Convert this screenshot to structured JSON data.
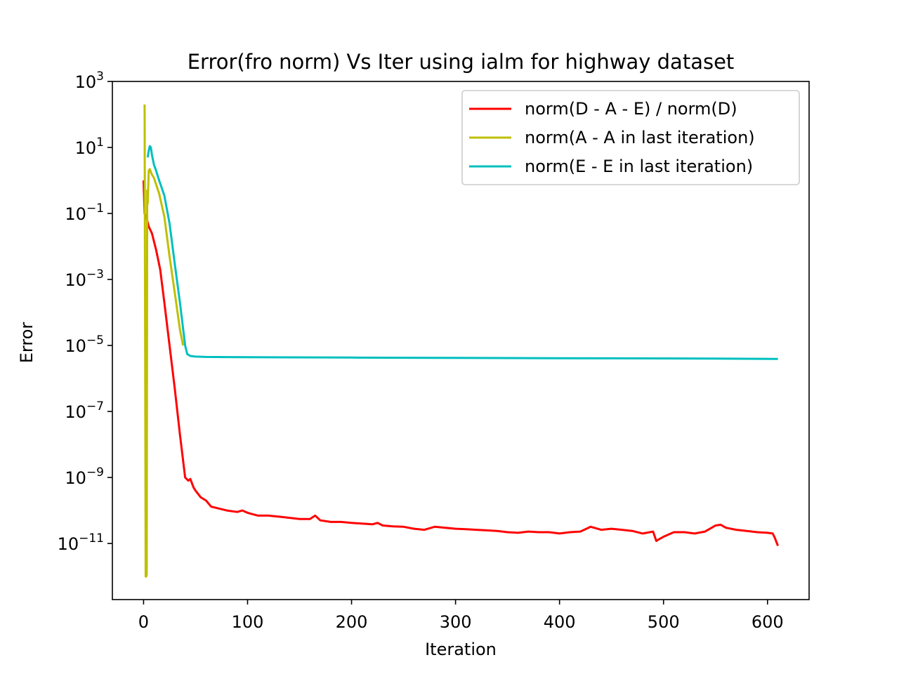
{
  "chart_data": {
    "type": "line",
    "title": "Error(fro norm) Vs Iter using ialm for highway dataset",
    "xlabel": "Iteration",
    "ylabel": "Error",
    "xlim": [
      -30,
      640
    ],
    "ylim_log10": [
      -12.7,
      3.0
    ],
    "yscale": "log",
    "xticks": [
      0,
      100,
      200,
      300,
      400,
      500,
      600
    ],
    "yticks": [
      {
        "base": "10",
        "exp": "3",
        "value": 3
      },
      {
        "base": "10",
        "exp": "1",
        "value": 1
      },
      {
        "base": "10",
        "exp": "−1",
        "value": -1
      },
      {
        "base": "10",
        "exp": "−3",
        "value": -3
      },
      {
        "base": "10",
        "exp": "−5",
        "value": -5
      },
      {
        "base": "10",
        "exp": "−7",
        "value": -7
      },
      {
        "base": "10",
        "exp": "−9",
        "value": -9
      },
      {
        "base": "10",
        "exp": "−11",
        "value": -11
      }
    ],
    "legend_position": "top-right",
    "grid": false,
    "series": [
      {
        "name": "norm(D - A - E) / norm(D)",
        "color": "#ff0000",
        "x": [
          0,
          1,
          3,
          5,
          8,
          12,
          16,
          20,
          25,
          30,
          35,
          40,
          43,
          45,
          48,
          50,
          55,
          60,
          65,
          70,
          80,
          90,
          95,
          100,
          110,
          120,
          130,
          140,
          150,
          160,
          165,
          170,
          180,
          190,
          200,
          210,
          220,
          225,
          230,
          240,
          250,
          260,
          270,
          280,
          290,
          300,
          310,
          320,
          330,
          340,
          350,
          360,
          370,
          380,
          390,
          400,
          410,
          420,
          430,
          440,
          450,
          460,
          470,
          480,
          490,
          493,
          495,
          500,
          510,
          520,
          530,
          540,
          550,
          555,
          560,
          570,
          580,
          590,
          600,
          605,
          607,
          610
        ],
        "y": [
          1.0,
          0.1,
          0.07,
          0.04,
          0.025,
          0.008,
          0.002,
          0.0002,
          1e-05,
          5e-07,
          2e-08,
          1e-09,
          8e-10,
          9e-10,
          5e-10,
          4e-10,
          2.5e-10,
          2e-10,
          1.3e-10,
          1.2e-10,
          1e-10,
          9e-11,
          1e-10,
          8.5e-11,
          7e-11,
          7e-11,
          6.5e-11,
          6e-11,
          5.5e-11,
          5.5e-11,
          7e-11,
          5e-11,
          4.5e-11,
          4.5e-11,
          4.2e-11,
          4e-11,
          3.8e-11,
          4.2e-11,
          3.5e-11,
          3.3e-11,
          3.2e-11,
          2.8e-11,
          2.6e-11,
          3.2e-11,
          3e-11,
          2.8e-11,
          2.7e-11,
          2.6e-11,
          2.5e-11,
          2.4e-11,
          2.2e-11,
          2.1e-11,
          2.3e-11,
          2.2e-11,
          2.2e-11,
          2e-11,
          2.2e-11,
          2.3e-11,
          3.2e-11,
          2.6e-11,
          2.8e-11,
          2.6e-11,
          2.4e-11,
          2e-11,
          2.3e-11,
          1.2e-11,
          1.3e-11,
          1.6e-11,
          2.2e-11,
          2.2e-11,
          2e-11,
          2.3e-11,
          3.5e-11,
          3.7e-11,
          3e-11,
          2.6e-11,
          2.4e-11,
          2.2e-11,
          2.1e-11,
          2e-11,
          1.5e-11,
          8.5e-12
        ]
      },
      {
        "name": "norm(A - A in last iteration)",
        "color": "#bfbf00",
        "x": [
          1,
          2,
          2.3,
          2.6,
          3,
          3.5,
          4,
          5,
          6,
          8,
          10,
          15,
          20,
          25,
          30,
          35,
          38
        ],
        "y": [
          200,
          1e-12,
          1e-12,
          1e-12,
          1.2e-12,
          0.5,
          0.2,
          2,
          2.2,
          1.5,
          1.2,
          0.4,
          0.08,
          0.005,
          0.0004,
          3e-05,
          1e-05
        ]
      },
      {
        "name": "norm(E - E in last iteration)",
        "color": "#00bfbf",
        "x": [
          4,
          5,
          6,
          7,
          8,
          10,
          12,
          15,
          20,
          25,
          30,
          35,
          40,
          42,
          45,
          50,
          60,
          80,
          100,
          200,
          300,
          400,
          500,
          550,
          610
        ],
        "y": [
          5,
          8,
          11,
          10,
          6,
          3,
          2,
          1,
          0.35,
          0.05,
          0.003,
          0.0002,
          1e-05,
          5.5e-06,
          4.8e-06,
          4.6e-06,
          4.5e-06,
          4.45e-06,
          4.4e-06,
          4.3e-06,
          4.2e-06,
          4.1e-06,
          4.05e-06,
          4e-06,
          3.9e-06
        ]
      }
    ]
  }
}
